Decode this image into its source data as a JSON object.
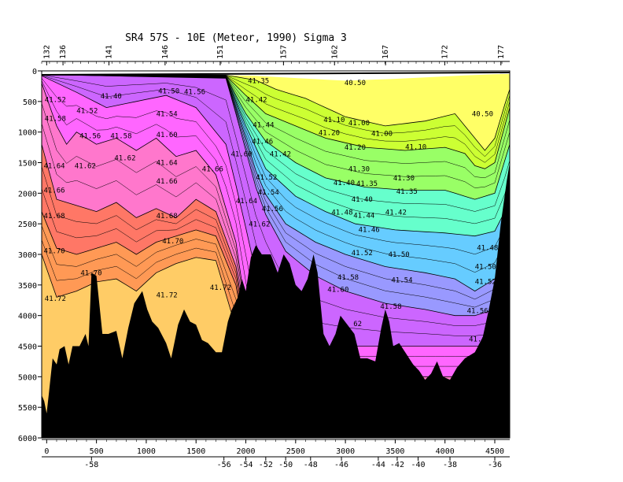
{
  "chart_data": {
    "type": "contour",
    "title": "SR4 57S - 10E (Meteor, 1990) Sigma 3",
    "xlabel": "",
    "ylabel": "",
    "x_ticks": [
      0,
      500,
      1000,
      1500,
      2000,
      2500,
      3000,
      3500,
      4000,
      4500
    ],
    "y_ticks": [
      0,
      500,
      1000,
      1500,
      2000,
      2500,
      3000,
      3500,
      4000,
      4500,
      5000,
      5500,
      6000
    ],
    "xlim": [
      -50,
      4650
    ],
    "ylim": [
      6000,
      0
    ],
    "station_ticks": [
      "132",
      "136",
      "141",
      "146",
      "151",
      "157",
      "162",
      "167",
      "172",
      "177"
    ],
    "station_dist": [
      0,
      80,
      305,
      580,
      850,
      1160,
      1410,
      1660,
      1950,
      2225
    ],
    "lat_ticks": [
      "-58",
      "-56",
      "-54",
      "-52",
      "-50",
      "-48",
      "-46",
      "-44",
      "-42",
      "-40",
      "-38",
      "-36"
    ],
    "lat_dist": [
      450,
      1780,
      2000,
      2200,
      2400,
      2650,
      2960,
      3330,
      3520,
      3730,
      4050,
      4500
    ],
    "levels": [
      {
        "v": 41.0,
        "color": "#ffff66"
      },
      {
        "v": 41.2,
        "color": "#ccff33"
      },
      {
        "v": 41.35,
        "color": "#99ff66"
      },
      {
        "v": 41.44,
        "color": "#66ffcc"
      },
      {
        "v": 41.48,
        "color": "#66ccff"
      },
      {
        "v": 41.52,
        "color": "#9999ff"
      },
      {
        "v": 41.56,
        "color": "#cc66ff"
      },
      {
        "v": 41.62,
        "color": "#ff66ff"
      },
      {
        "v": 41.66,
        "color": "#ff77cc"
      },
      {
        "v": 41.69,
        "color": "#ff7766"
      },
      {
        "v": 41.71,
        "color": "#ff9955"
      },
      {
        "v": 41.73,
        "color": "#ffcc66"
      }
    ],
    "labels": [
      {
        "t": "41.35",
        "x": 2020,
        "y": 200
      },
      {
        "t": "40.50",
        "x": 2990,
        "y": 230
      },
      {
        "t": "41.52",
        "x": -20,
        "y": 510
      },
      {
        "t": "41.40",
        "x": 540,
        "y": 450
      },
      {
        "t": "41.50",
        "x": 1120,
        "y": 370
      },
      {
        "t": "41.56",
        "x": 1380,
        "y": 380
      },
      {
        "t": "41.42",
        "x": 2000,
        "y": 510
      },
      {
        "t": "41.52",
        "x": 300,
        "y": 690
      },
      {
        "t": "41.54",
        "x": 1100,
        "y": 740
      },
      {
        "t": "40.50",
        "x": 4270,
        "y": 740
      },
      {
        "t": "41.58",
        "x": -20,
        "y": 820
      },
      {
        "t": "41.10",
        "x": 2780,
        "y": 840
      },
      {
        "t": "41.00",
        "x": 3030,
        "y": 890
      },
      {
        "t": "41.44",
        "x": 2070,
        "y": 920
      },
      {
        "t": "41.20",
        "x": 2730,
        "y": 1050
      },
      {
        "t": "41.00",
        "x": 3260,
        "y": 1060
      },
      {
        "t": "41.56",
        "x": 330,
        "y": 1100
      },
      {
        "t": "41.58",
        "x": 640,
        "y": 1100
      },
      {
        "t": "41.60",
        "x": 1100,
        "y": 1080
      },
      {
        "t": "41.46",
        "x": 2060,
        "y": 1190
      },
      {
        "t": "41.10",
        "x": 3600,
        "y": 1280
      },
      {
        "t": "41.20",
        "x": 2990,
        "y": 1290
      },
      {
        "t": "41.42",
        "x": 2240,
        "y": 1400
      },
      {
        "t": "41.60",
        "x": 1850,
        "y": 1400
      },
      {
        "t": "41.62",
        "x": 680,
        "y": 1460
      },
      {
        "t": "41.64",
        "x": -30,
        "y": 1590
      },
      {
        "t": "41.62",
        "x": 280,
        "y": 1590
      },
      {
        "t": "41.64",
        "x": 1100,
        "y": 1540
      },
      {
        "t": "41.66",
        "x": 1560,
        "y": 1640
      },
      {
        "t": "41.30",
        "x": 3030,
        "y": 1640
      },
      {
        "t": "41.52",
        "x": 2100,
        "y": 1780
      },
      {
        "t": "41.30",
        "x": 3480,
        "y": 1790
      },
      {
        "t": "41.66",
        "x": 1100,
        "y": 1840
      },
      {
        "t": "41.40",
        "x": 2880,
        "y": 1870
      },
      {
        "t": "41.35",
        "x": 3110,
        "y": 1880
      },
      {
        "t": "41.66",
        "x": -30,
        "y": 1990
      },
      {
        "t": "41.54",
        "x": 2120,
        "y": 2020
      },
      {
        "t": "41.35",
        "x": 3510,
        "y": 2010
      },
      {
        "t": "41.64",
        "x": 1900,
        "y": 2160
      },
      {
        "t": "41.40",
        "x": 3060,
        "y": 2140
      },
      {
        "t": "41.56",
        "x": 2160,
        "y": 2290
      },
      {
        "t": "41.48",
        "x": 2860,
        "y": 2350
      },
      {
        "t": "41.44",
        "x": 3080,
        "y": 2400
      },
      {
        "t": "41.42",
        "x": 3400,
        "y": 2350
      },
      {
        "t": "41.68",
        "x": -30,
        "y": 2410
      },
      {
        "t": "41.68",
        "x": 1100,
        "y": 2410
      },
      {
        "t": "41.62",
        "x": 2030,
        "y": 2540
      },
      {
        "t": "41.46",
        "x": 3130,
        "y": 2630
      },
      {
        "t": "41.70",
        "x": 1160,
        "y": 2820
      },
      {
        "t": "41.48",
        "x": 4320,
        "y": 2930
      },
      {
        "t": "41.70",
        "x": -30,
        "y": 2980
      },
      {
        "t": "41.52",
        "x": 3060,
        "y": 3010
      },
      {
        "t": "41.50",
        "x": 3430,
        "y": 3040
      },
      {
        "t": "41.50",
        "x": 4300,
        "y": 3240
      },
      {
        "t": "41.70",
        "x": 340,
        "y": 3340
      },
      {
        "t": "41.58",
        "x": 2920,
        "y": 3410
      },
      {
        "t": "41.54",
        "x": 3460,
        "y": 3460
      },
      {
        "t": "41.52",
        "x": 4300,
        "y": 3480
      },
      {
        "t": "41.72",
        "x": 1640,
        "y": 3580
      },
      {
        "t": "41.60",
        "x": 2820,
        "y": 3610
      },
      {
        "t": "41.72",
        "x": -20,
        "y": 3760
      },
      {
        "t": "41.72",
        "x": 1100,
        "y": 3700
      },
      {
        "t": "41.58",
        "x": 3350,
        "y": 3890
      },
      {
        "t": "41.56",
        "x": 4220,
        "y": 3960
      },
      {
        "t": "62",
        "x": 3080,
        "y": 4170
      },
      {
        "t": "41.60",
        "x": 4240,
        "y": 4420
      }
    ]
  }
}
